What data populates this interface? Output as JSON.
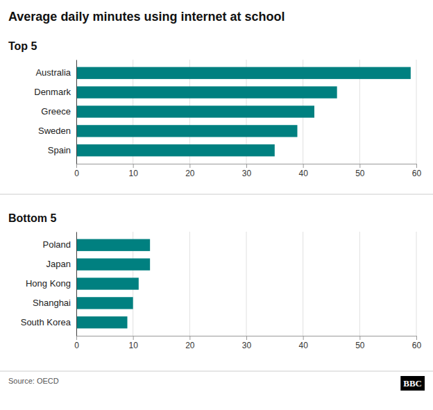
{
  "chart_data": [
    {
      "type": "bar",
      "title": "Average daily minutes using internet at school",
      "subtitle": "Top 5",
      "orientation": "horizontal",
      "categories": [
        "Australia",
        "Denmark",
        "Greece",
        "Sweden",
        "Spain"
      ],
      "values": [
        59,
        46,
        42,
        39,
        35
      ],
      "color": "#008080",
      "xlim": [
        0,
        60
      ],
      "xticks": [
        0,
        10,
        20,
        30,
        40,
        50,
        60
      ],
      "grid": true
    },
    {
      "type": "bar",
      "subtitle": "Bottom 5",
      "orientation": "horizontal",
      "categories": [
        "Poland",
        "Japan",
        "Hong Kong",
        "Shanghai",
        "South Korea"
      ],
      "values": [
        13,
        13,
        11,
        10,
        9
      ],
      "color": "#008080",
      "xlim": [
        0,
        60
      ],
      "xticks": [
        0,
        10,
        20,
        30,
        40,
        50,
        60
      ],
      "grid": true,
      "annotations": [
        "Source: OECD",
        "BBC"
      ]
    }
  ]
}
